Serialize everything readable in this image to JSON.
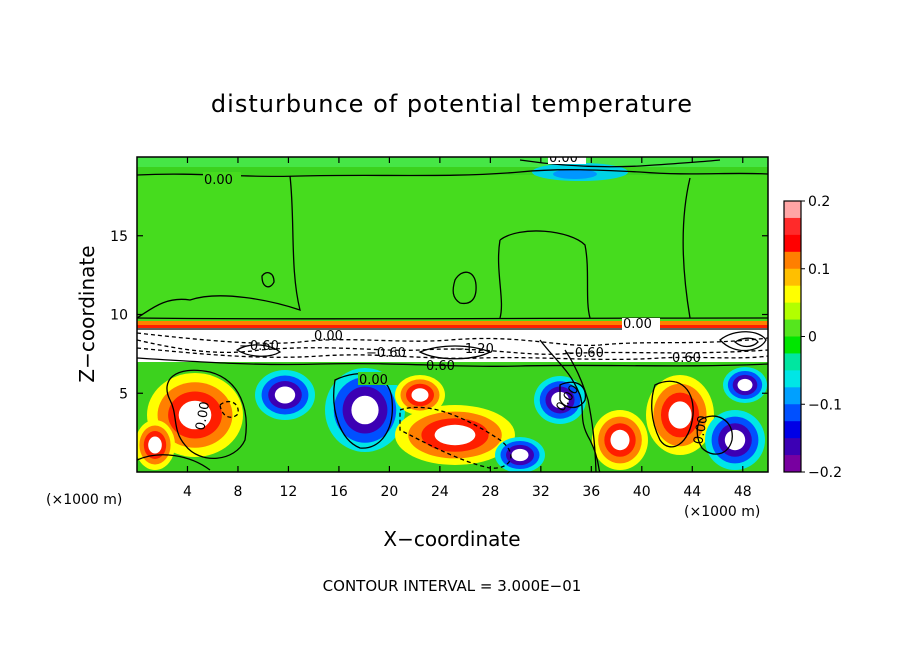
{
  "chart_data": {
    "type": "heatmap",
    "title": "disturbunce of potential temperature",
    "xlabel": "X−coordinate",
    "ylabel": "Z−coordinate",
    "x_unit_left": "(×1000 m)",
    "x_unit_right": "(×1000 m)",
    "xlim": [
      0,
      50
    ],
    "ylim": [
      0,
      20
    ],
    "x_ticks": [
      4,
      8,
      12,
      16,
      20,
      24,
      28,
      32,
      36,
      40,
      44,
      48
    ],
    "y_ticks": [
      5,
      10,
      15
    ],
    "colorbar": {
      "range": [
        -0.2,
        0.2
      ],
      "tick_labels": [
        "0.2",
        "0.1",
        "0",
        "−0.1",
        "−0.2"
      ],
      "tick_values": [
        0.2,
        0.1,
        0,
        -0.1,
        -0.2
      ],
      "colors": [
        "#ffa5a5",
        "#ff2a2a",
        "#ff0000",
        "#ff7f00",
        "#ffbf00",
        "#ffff00",
        "#b2ff00",
        "#55e61e",
        "#00e600",
        "#00e6a0",
        "#00e6e6",
        "#00a0ff",
        "#0050ff",
        "#0000e6",
        "#3c00b4",
        "#7800a0"
      ]
    },
    "contour_labels": [
      "0.00",
      "0.00",
      "0.00",
      "0.00",
      "−0.60",
      "−0.60",
      "−0.60",
      "−1.20",
      "0.60",
      "0.60",
      "0.00",
      "0.00",
      "0.00",
      "0.00"
    ],
    "footer": "CONTOUR INTERVAL = 3.000E−01"
  }
}
